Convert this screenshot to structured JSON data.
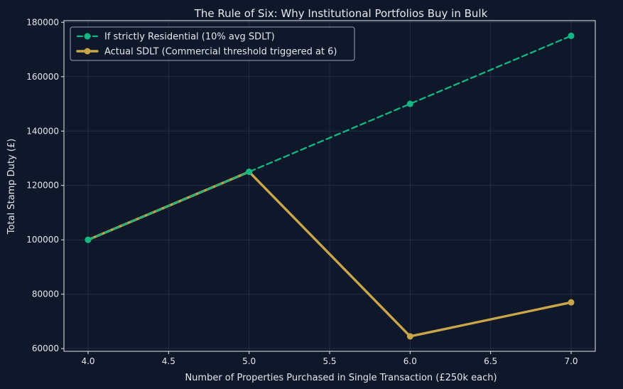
{
  "chart_data": {
    "type": "line",
    "title": "The Rule of Six: Why Institutional Portfolios Buy in Bulk",
    "xlabel": "Number of Properties Purchased in Single Transaction (£250k each)",
    "ylabel": "Total Stamp Duty (£)",
    "x": [
      4,
      5,
      6,
      7
    ],
    "xlim": [
      3.85,
      7.15
    ],
    "ylim": [
      59000,
      180600
    ],
    "xticks": [
      4.0,
      4.5,
      5.0,
      5.5,
      6.0,
      6.5,
      7.0
    ],
    "xtick_labels": [
      "4.0",
      "4.5",
      "5.0",
      "5.5",
      "6.0",
      "6.5",
      "7.0"
    ],
    "yticks": [
      60000,
      80000,
      100000,
      120000,
      140000,
      160000,
      180000
    ],
    "ytick_labels": [
      "60000",
      "80000",
      "100000",
      "120000",
      "140000",
      "160000",
      "180000"
    ],
    "grid": true,
    "legend_position": "top-left",
    "series": [
      {
        "name": "If strictly Residential (10% avg SDLT)",
        "values": [
          100000,
          125000,
          150000,
          175000
        ],
        "color": "#10b981",
        "style": "dashed"
      },
      {
        "name": "Actual SDLT (Commercial threshold triggered at 6)",
        "values": [
          100000,
          125000,
          64500,
          77000
        ],
        "color": "#c9a64a",
        "style": "solid"
      }
    ],
    "colors": {
      "background": "#0f172a",
      "text": "#e5e7eb",
      "grid": "#334155",
      "spine": "#e5e7eb"
    }
  }
}
